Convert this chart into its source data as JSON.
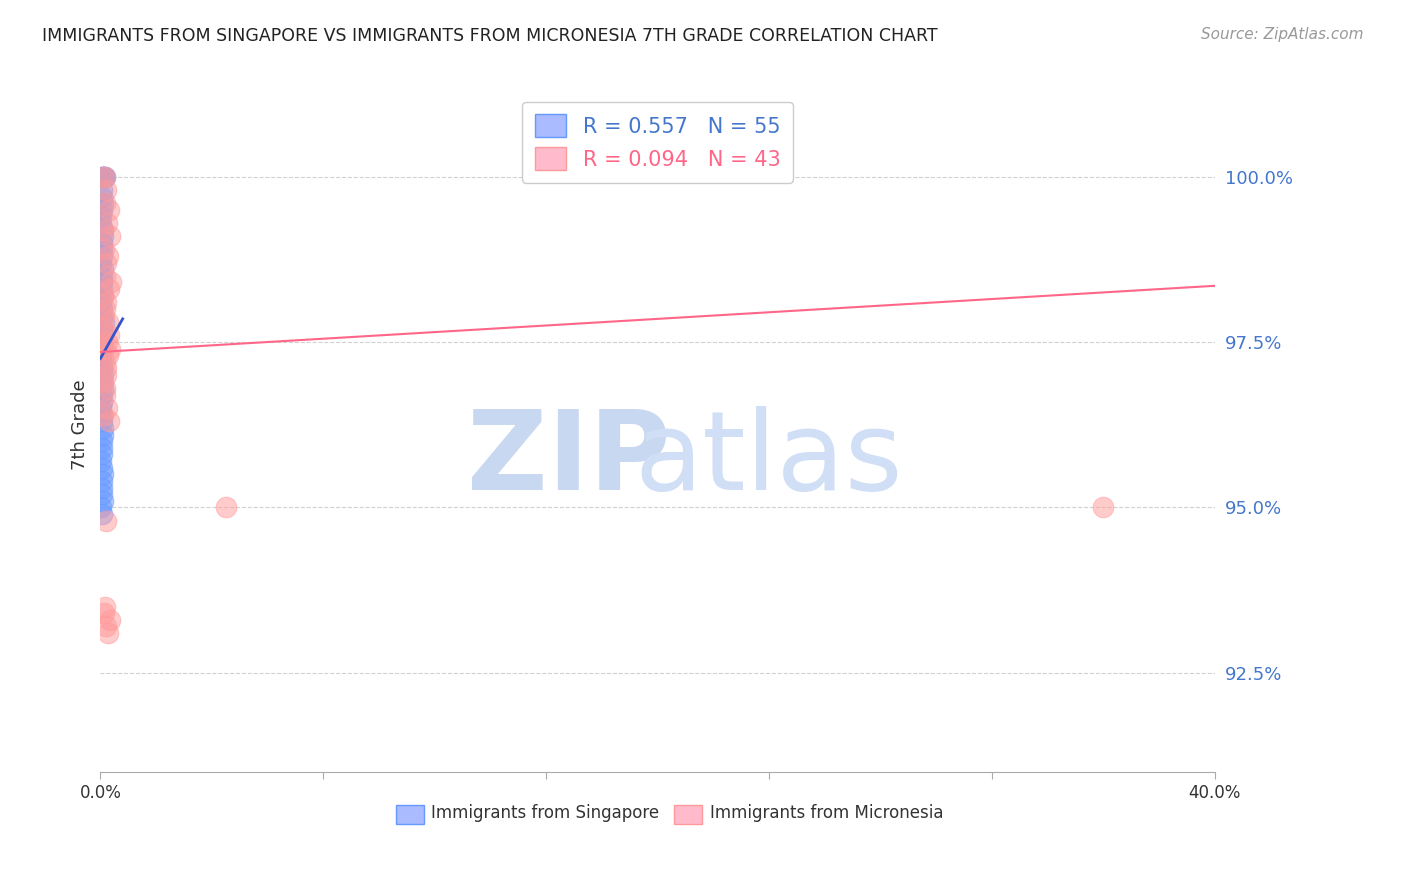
{
  "title": "IMMIGRANTS FROM SINGAPORE VS IMMIGRANTS FROM MICRONESIA 7TH GRADE CORRELATION CHART",
  "source": "Source: ZipAtlas.com",
  "ylabel": "7th Grade",
  "y_ticks": [
    92.5,
    95.0,
    97.5,
    100.0
  ],
  "y_tick_labels": [
    "92.5%",
    "95.0%",
    "97.5%",
    "100.0%"
  ],
  "xlim": [
    0.0,
    40.0
  ],
  "ylim": [
    91.0,
    101.5
  ],
  "legend_R_singapore": "0.557",
  "legend_N_singapore": "55",
  "legend_R_micronesia": "0.094",
  "legend_N_micronesia": "43",
  "color_singapore": "#6699FF",
  "color_micronesia": "#FF9999",
  "trendline_singapore_color": "#3355CC",
  "trendline_micronesia_color": "#FF6688",
  "singapore_x": [
    0.05,
    0.1,
    0.08,
    0.12,
    0.15,
    0.05,
    0.07,
    0.09,
    0.06,
    0.04,
    0.03,
    0.08,
    0.11,
    0.07,
    0.05,
    0.06,
    0.04,
    0.09,
    0.06,
    0.07,
    0.05,
    0.08,
    0.04,
    0.06,
    0.05,
    0.12,
    0.07,
    0.09,
    0.06,
    0.05,
    0.04,
    0.07,
    0.06,
    0.08,
    0.05,
    0.09,
    0.06,
    0.07,
    0.04,
    0.06,
    0.05,
    0.08,
    0.1,
    0.06,
    0.07,
    0.05,
    0.04,
    0.06,
    0.08,
    0.07,
    0.05,
    0.06,
    0.09,
    0.04,
    0.05
  ],
  "singapore_y": [
    100.0,
    100.0,
    100.0,
    100.0,
    100.0,
    99.8,
    99.7,
    99.6,
    99.5,
    99.4,
    99.3,
    99.2,
    99.1,
    99.0,
    98.9,
    98.8,
    98.7,
    98.6,
    98.5,
    98.4,
    98.3,
    98.2,
    98.1,
    98.0,
    97.9,
    97.8,
    97.7,
    97.6,
    97.5,
    97.4,
    97.3,
    97.2,
    97.1,
    97.0,
    96.9,
    96.8,
    96.7,
    96.6,
    96.5,
    96.4,
    96.3,
    96.2,
    96.1,
    96.0,
    95.9,
    95.8,
    95.7,
    95.6,
    95.5,
    95.4,
    95.3,
    95.2,
    95.1,
    95.0,
    94.9
  ],
  "micronesia_x": [
    0.08,
    0.15,
    0.22,
    0.18,
    0.3,
    0.25,
    0.1,
    0.35,
    0.12,
    0.28,
    0.2,
    0.16,
    0.4,
    0.32,
    0.08,
    0.22,
    0.18,
    0.14,
    0.26,
    0.1,
    0.3,
    0.24,
    0.06,
    0.12,
    0.34,
    0.28,
    0.16,
    0.22,
    0.2,
    0.08,
    0.18,
    0.15,
    0.25,
    0.1,
    0.3,
    4.5,
    0.22,
    0.16,
    0.12,
    0.35,
    0.2,
    0.28,
    36.0
  ],
  "micronesia_y": [
    100.0,
    100.0,
    99.8,
    99.6,
    99.5,
    99.3,
    99.2,
    99.1,
    98.9,
    98.8,
    98.7,
    98.5,
    98.4,
    98.3,
    98.2,
    98.1,
    98.0,
    97.9,
    97.8,
    97.7,
    97.6,
    97.5,
    97.5,
    97.4,
    97.4,
    97.3,
    97.2,
    97.1,
    97.0,
    96.9,
    96.8,
    96.7,
    96.5,
    96.4,
    96.3,
    95.0,
    94.8,
    93.5,
    93.4,
    93.3,
    93.2,
    93.1,
    95.0
  ],
  "sg_trendline_x": [
    0.0,
    0.8
  ],
  "sg_trendline_y": [
    97.2,
    97.8
  ],
  "mc_trendline_x": [
    0.0,
    40.0
  ],
  "mc_trendline_y": [
    97.35,
    98.35
  ]
}
